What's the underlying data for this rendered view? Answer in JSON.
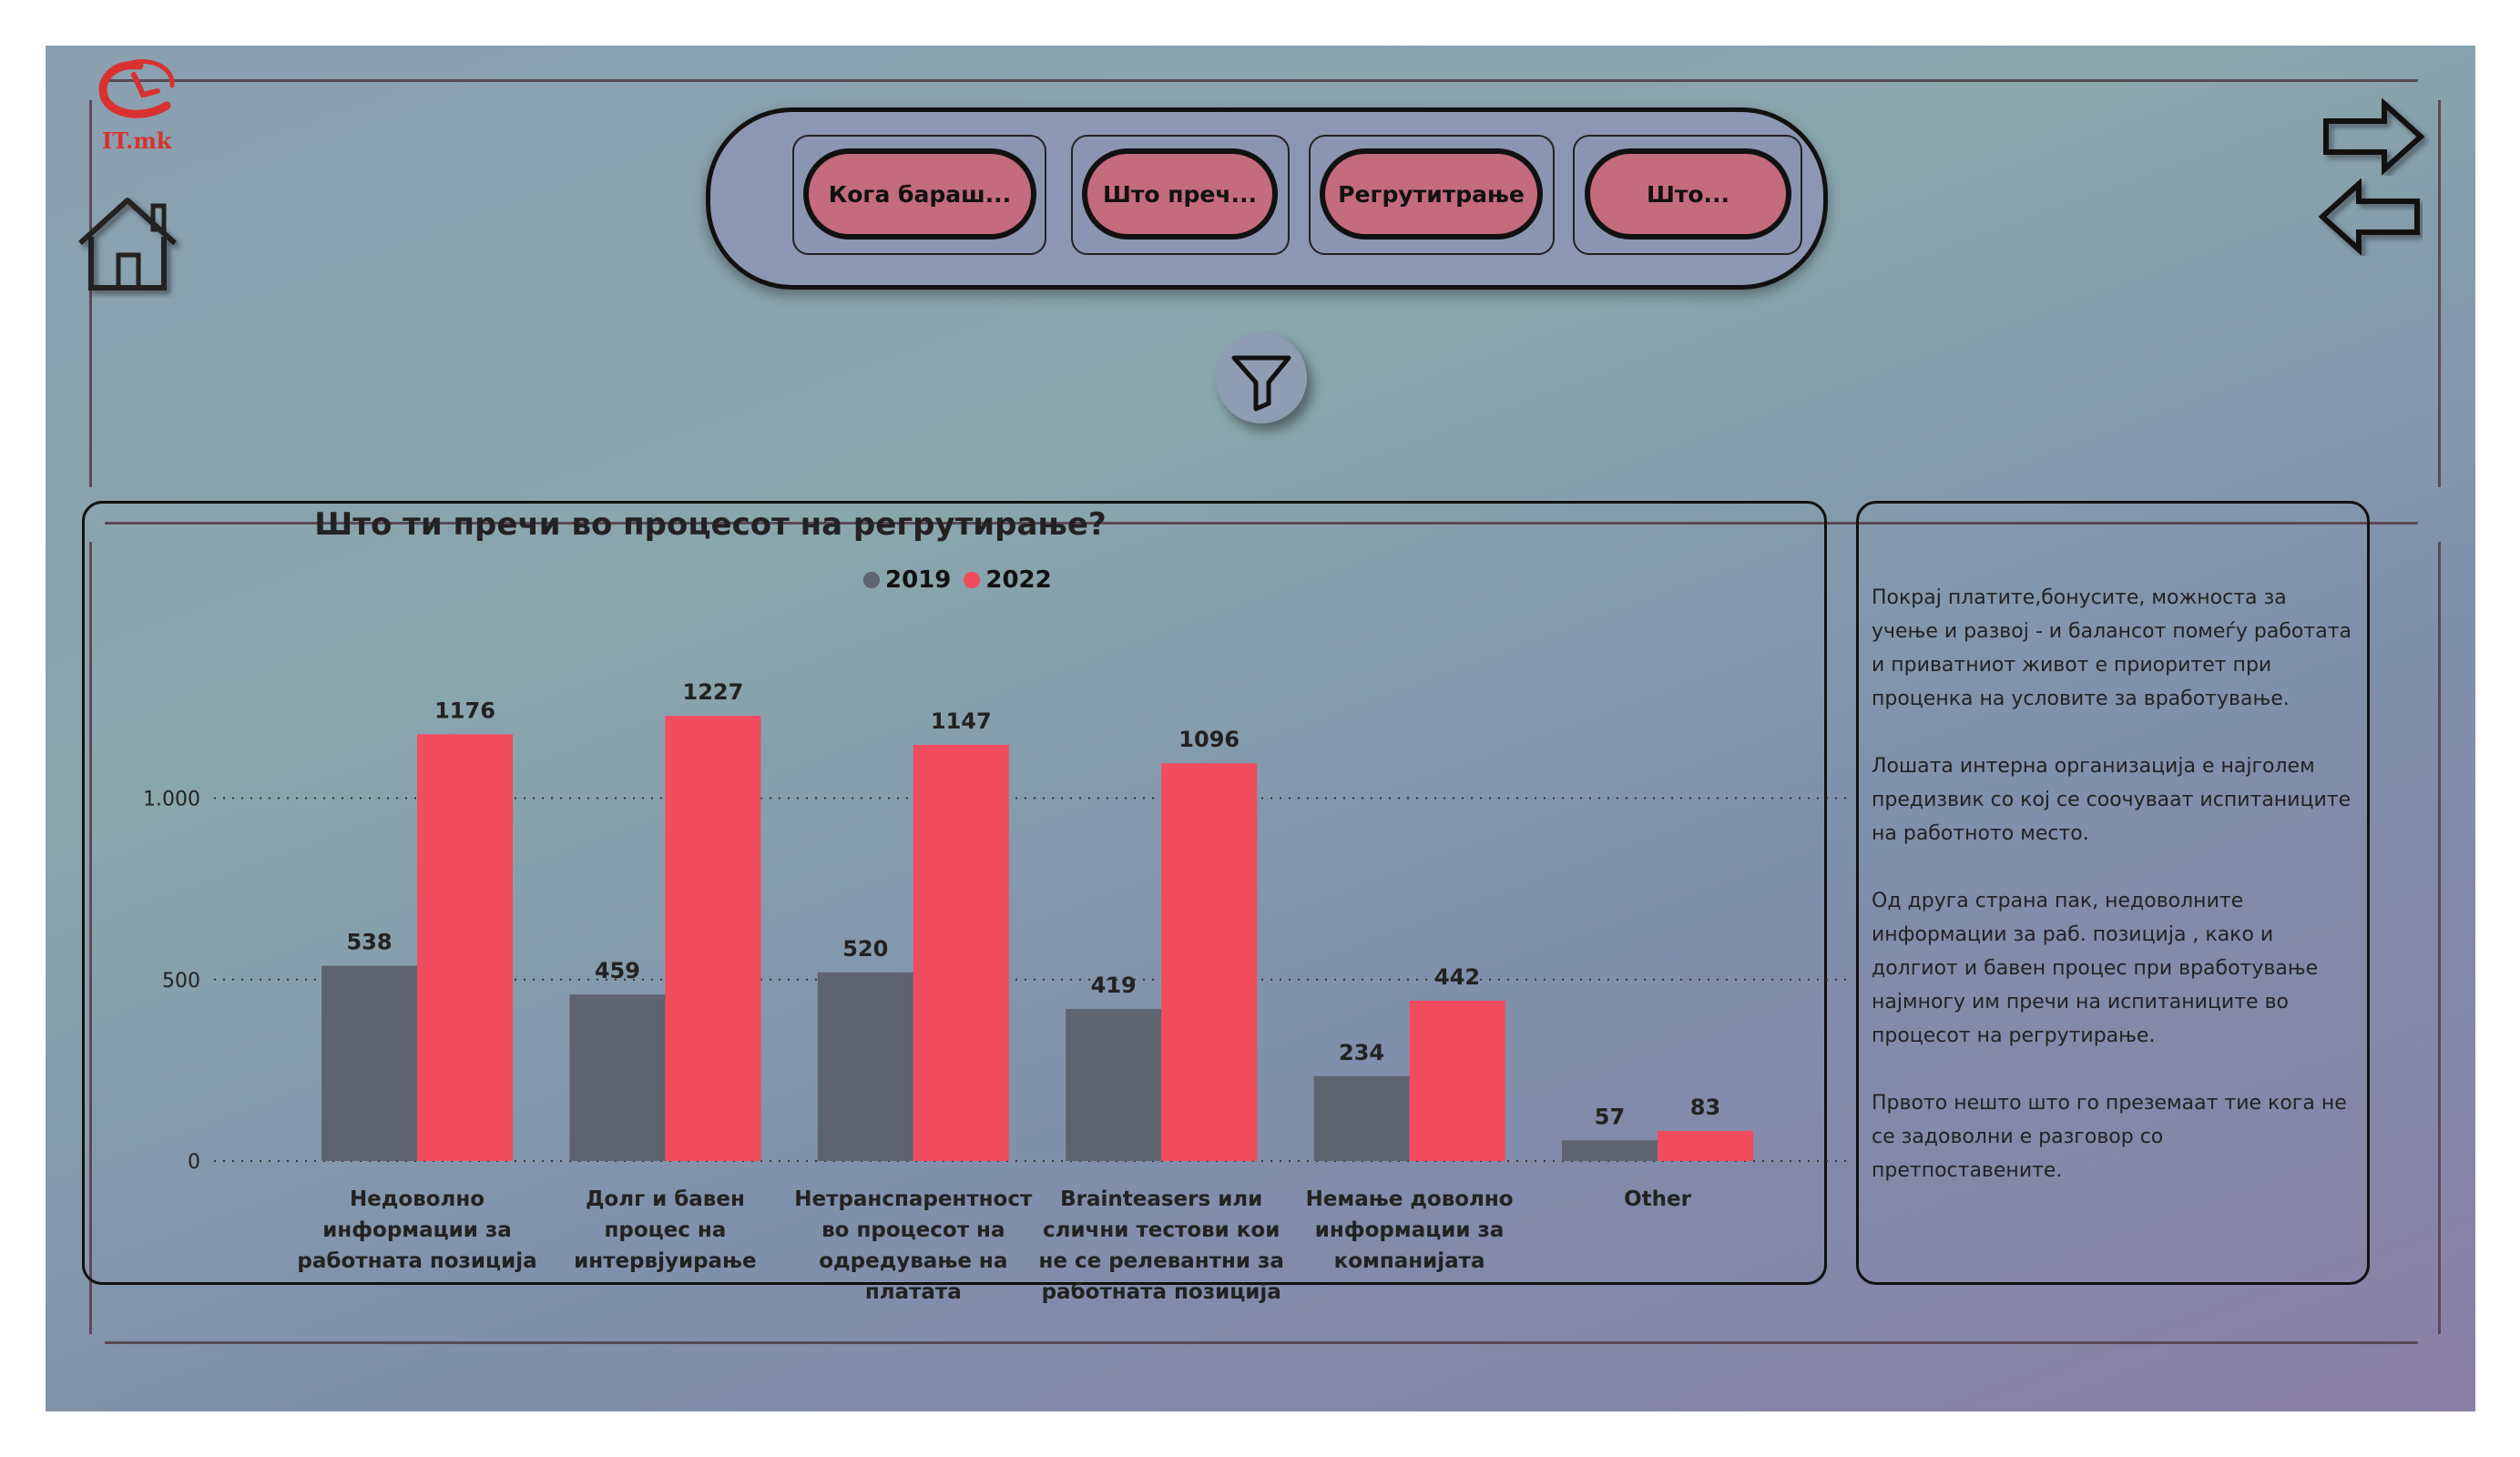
{
  "logo": {
    "text": "IT.mk"
  },
  "nav": {
    "buttons": [
      {
        "label": "Кога бараш..."
      },
      {
        "label": "Што преч..."
      },
      {
        "label": "Регрутитрање"
      },
      {
        "label": "Што..."
      }
    ]
  },
  "icons": {
    "home": "home-icon",
    "filter": "filter-icon",
    "forward": "arrow-right-icon",
    "back": "arrow-left-icon"
  },
  "colors": {
    "series2019": "#5d6370",
    "series2022": "#f04c5e",
    "button": "#c46b7e"
  },
  "chart_data": {
    "type": "bar",
    "title": "Што ти пречи во процесот на регрутирање?",
    "legend_position": "top",
    "grid": true,
    "ylim": [
      0,
      1300
    ],
    "yticks": [
      {
        "value": 0,
        "label": "0"
      },
      {
        "value": 500,
        "label": "500"
      },
      {
        "value": 1000,
        "label": "1.000"
      }
    ],
    "categories": [
      [
        "Недоволно",
        "информации за",
        "работната позиција"
      ],
      [
        "Долг и бавен",
        "процес на",
        "интервјуирање"
      ],
      [
        "Нетранспарентност",
        "во процесот на",
        "одредување на",
        "платата"
      ],
      [
        "Brainteasers или",
        "слични тестови кои",
        "не се релевантни за",
        "работната позиција"
      ],
      [
        "Немање доволно",
        "информации за",
        "компанијата"
      ],
      [
        "Other"
      ]
    ],
    "series": [
      {
        "name": "2019",
        "values": [
          538,
          459,
          520,
          419,
          234,
          57
        ]
      },
      {
        "name": "2022",
        "values": [
          1176,
          1227,
          1147,
          1096,
          442,
          83
        ]
      }
    ]
  },
  "notes": {
    "paragraphs": [
      "Покрај платите,бонусите, можноста за учење и развој - и балансот помеѓу работата и приватниот живот  е приоритет при проценка на условите за вработување.",
      "Лошата интерна организација е најголем предизвик со кој се соочуваат испитаниците на работното место.",
      "Од друга страна пак, недоволните информации за раб. позиција , како и долгиот и бавен процес при вработување најмногу им пречи на испитаниците во процесот на регрутирање.",
      "Првото нешто што го преземаат тие кога не се задоволни е разговор со претпоставените."
    ]
  }
}
